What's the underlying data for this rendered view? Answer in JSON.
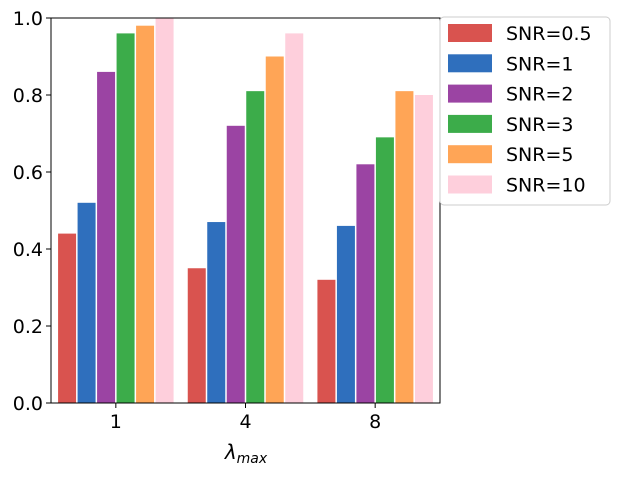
{
  "chart_data": {
    "type": "bar",
    "categories": [
      "1",
      "4",
      "8"
    ],
    "xlabel_main": "λ",
    "xlabel_sub": "max",
    "ylabel": "",
    "title": "",
    "ylim": [
      0.0,
      1.0
    ],
    "yticks": [
      "0.0",
      "0.2",
      "0.4",
      "0.6",
      "0.8",
      "1.0"
    ],
    "legend_position": "outside-top-right",
    "grid": false,
    "series": [
      {
        "name": "SNR=0.5",
        "color": "#d9534f",
        "values": [
          0.44,
          0.35,
          0.32
        ]
      },
      {
        "name": "SNR=1",
        "color": "#2f6fbd",
        "values": [
          0.52,
          0.47,
          0.46
        ]
      },
      {
        "name": "SNR=2",
        "color": "#9b44a3",
        "values": [
          0.86,
          0.72,
          0.62
        ]
      },
      {
        "name": "SNR=3",
        "color": "#3cac4a",
        "values": [
          0.96,
          0.81,
          0.69
        ]
      },
      {
        "name": "SNR=5",
        "color": "#ffa556",
        "values": [
          0.98,
          0.9,
          0.81
        ]
      },
      {
        "name": "SNR=10",
        "color": "#fecfdc",
        "values": [
          1.0,
          0.96,
          0.8
        ]
      }
    ]
  }
}
